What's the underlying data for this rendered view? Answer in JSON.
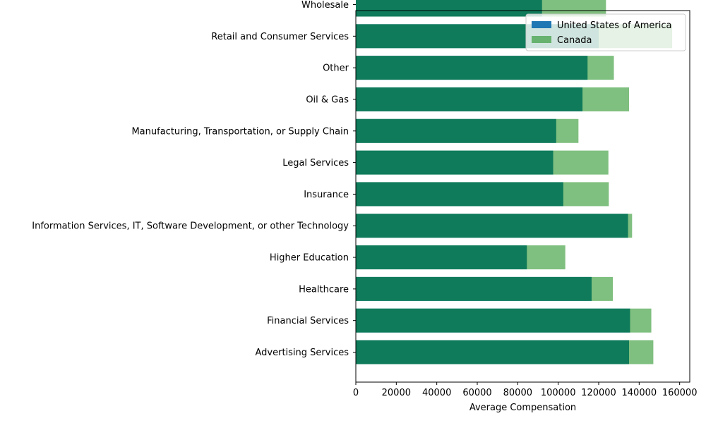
{
  "chart_data": {
    "type": "bar",
    "orientation": "horizontal",
    "overlay": true,
    "xlabel": "Average Compensation",
    "xlim": [
      0,
      165000
    ],
    "xticks": [
      0,
      20000,
      40000,
      60000,
      80000,
      100000,
      120000,
      140000,
      160000
    ],
    "legend_placement": "top-right",
    "grid": false,
    "categories": [
      "Advertising Services",
      "Financial Services",
      "Healthcare",
      "Higher Education",
      "Information Services, IT, Software Development, or other Technology",
      "Insurance",
      "Legal Services",
      "Manufacturing, Transportation, or Supply Chain",
      "Oil & Gas",
      "Other",
      "Retail and Consumer Services",
      "Wholesale"
    ],
    "series": [
      {
        "name": "United States of America",
        "color": "#1f77b4",
        "values": [
          135000,
          135500,
          116500,
          84500,
          134500,
          102500,
          97500,
          99000,
          112000,
          114500,
          120000,
          92000
        ]
      },
      {
        "name": "Canada",
        "color": "#008000",
        "alpha": 0.5,
        "values": [
          147000,
          146000,
          127000,
          103500,
          136500,
          125000,
          124800,
          110000,
          135000,
          127500,
          156300,
          123600
        ]
      }
    ]
  }
}
